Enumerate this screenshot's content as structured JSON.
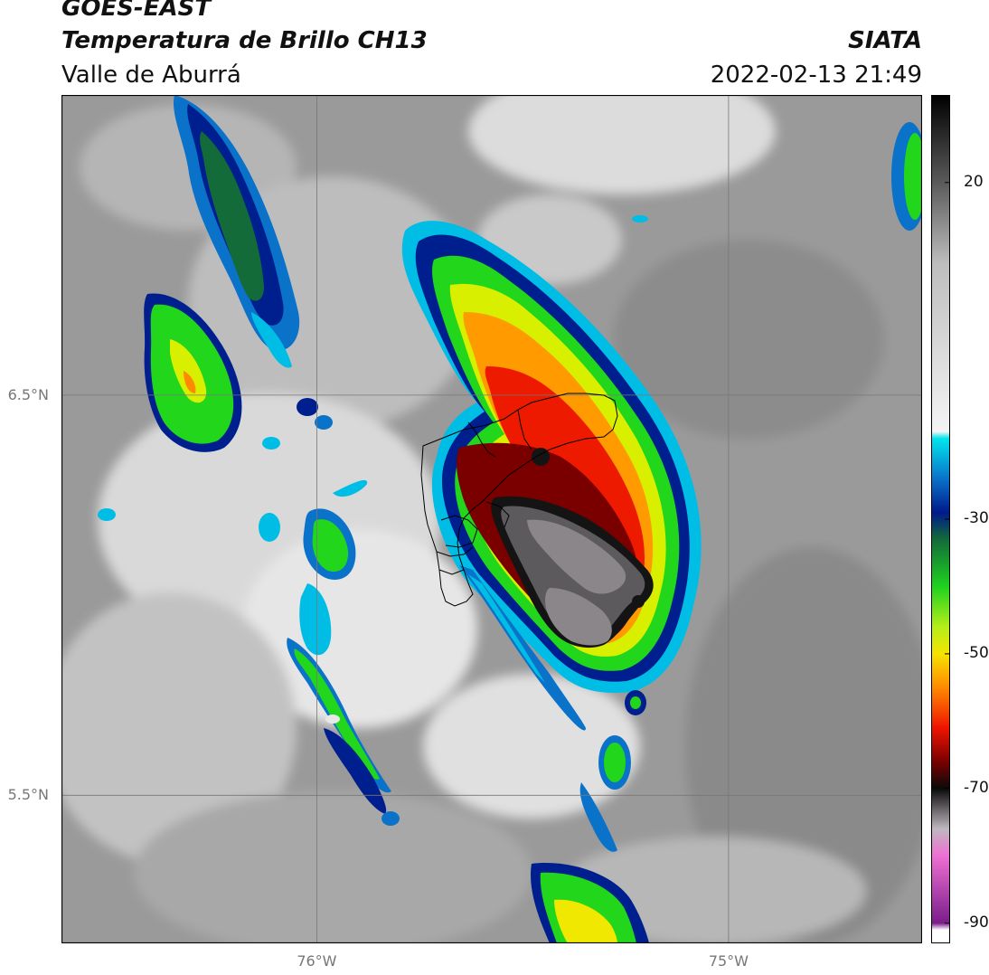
{
  "header": {
    "satellite": "GOES-EAST",
    "product": "Temperatura de Brillo CH13",
    "region": "Valle de Aburrá",
    "organization": "SIATA",
    "datetime": "2022-02-13 21:49"
  },
  "map": {
    "lon_range": [
      -76.62,
      -74.53
    ],
    "lat_range": [
      5.13,
      7.25
    ],
    "lon_ticks": [
      {
        "value": -76.0,
        "label": "76°W"
      },
      {
        "value": -75.0,
        "label": "75°W"
      }
    ],
    "lat_ticks": [
      {
        "value": 6.5,
        "label": "6.5°N"
      },
      {
        "value": 5.5,
        "label": "5.5°N"
      }
    ],
    "gridlines": true,
    "background_color": "#9a9a9a"
  },
  "colorbar": {
    "range": [
      -93,
      33
    ],
    "ticks": [
      {
        "value": 20,
        "label": "20"
      },
      {
        "value": -30,
        "label": "-30"
      },
      {
        "value": -50,
        "label": "-50"
      },
      {
        "value": -70,
        "label": "-70"
      },
      {
        "value": -90,
        "label": "-90"
      }
    ],
    "stops": [
      {
        "value": 33,
        "color": "#000000"
      },
      {
        "value": 20,
        "color": "#5a5a5a"
      },
      {
        "value": 8,
        "color": "#bdbdbd"
      },
      {
        "value": -17,
        "color": "#f4f4f4"
      },
      {
        "value": -18,
        "color": "#00e5ee"
      },
      {
        "value": -24,
        "color": "#0a72c9"
      },
      {
        "value": -29,
        "color": "#001a8c"
      },
      {
        "value": -33,
        "color": "#136b3a"
      },
      {
        "value": -40,
        "color": "#1fd21f"
      },
      {
        "value": -46,
        "color": "#b5ee1a"
      },
      {
        "value": -50,
        "color": "#f5e400"
      },
      {
        "value": -55,
        "color": "#ff8a00"
      },
      {
        "value": -61,
        "color": "#ee1500"
      },
      {
        "value": -66,
        "color": "#7a0000"
      },
      {
        "value": -70,
        "color": "#0a0a0a"
      },
      {
        "value": -76,
        "color": "#bfb8bf"
      },
      {
        "value": -80,
        "color": "#ee6fd2"
      },
      {
        "value": -90,
        "color": "#7a1d8a"
      },
      {
        "value": -91,
        "color": "#ffffff"
      }
    ]
  }
}
